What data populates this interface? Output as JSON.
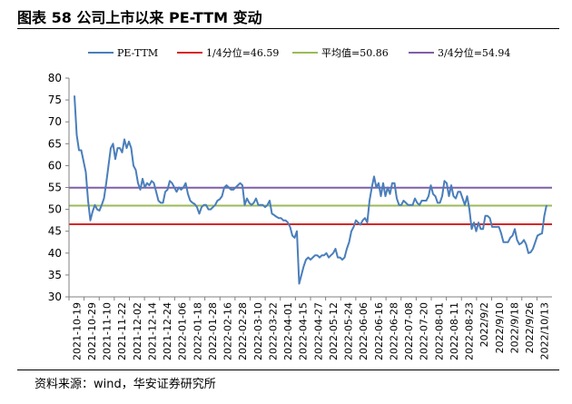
{
  "header": {
    "title": "图表 58 公司上市以来 PE-TTM 变动"
  },
  "footer": {
    "source": "资料来源：wind，华安证券研究所"
  },
  "chart_data": {
    "type": "line",
    "title": "",
    "xlabel": "",
    "ylabel": "",
    "ylim": [
      30,
      80
    ],
    "yticks": [
      30,
      35,
      40,
      45,
      50,
      55,
      60,
      65,
      70,
      75,
      80
    ],
    "grid": false,
    "legend_position": "top",
    "x_tick_labels": [
      "2021-10-19",
      "2021-10-29",
      "2021-11-10",
      "2021-11-22",
      "2021-12-02",
      "2021-12-14",
      "2021-12-24",
      "2022-01-06",
      "2022-01-18",
      "2022-01-28",
      "2022-02-16",
      "2022-02-28",
      "2022-03-10",
      "2022-03-22",
      "2022-04-01",
      "2022-04-15",
      "2022-04-27",
      "2022-05-12",
      "2022-05-24",
      "2022-06-06",
      "2022-06-16",
      "2022-06-28",
      "2022-07-08",
      "2022-07-20",
      "2022-08-01",
      "2022-08-11",
      "2022-08-23",
      "2022/9/2",
      "2022/9/10",
      "2022/9/18",
      "2022/9/26",
      "2022/10/13"
    ],
    "series": [
      {
        "name": "PE-TTM",
        "color": "#4a7ebb",
        "values": [
          76,
          67,
          63.5,
          63.5,
          61,
          58.5,
          52,
          47.5,
          49.5,
          51,
          50,
          49.7,
          51,
          52.5,
          56,
          60,
          64,
          65,
          61.5,
          64,
          64,
          63,
          66,
          64,
          65.5,
          64,
          60,
          59,
          56,
          54.5,
          57,
          55,
          56,
          55.5,
          56.5,
          56,
          54,
          52,
          51.5,
          51.5,
          54,
          54.5,
          56.5,
          56,
          55,
          54,
          55,
          54.5,
          55,
          56,
          53.5,
          52,
          51.5,
          51.2,
          50.5,
          49,
          50.5,
          51,
          51,
          50,
          50,
          50.5,
          51,
          52,
          52.3,
          53,
          55,
          55.5,
          55,
          54.5,
          54.5,
          55,
          55.5,
          56,
          55.5,
          51,
          52.5,
          51.5,
          51,
          51.5,
          52.5,
          51,
          51,
          51,
          50.5,
          51,
          52,
          49,
          48.7,
          48.3,
          48,
          48,
          47.5,
          47.5,
          47,
          46,
          44,
          43.5,
          45,
          33,
          35,
          37,
          38.5,
          39,
          38.5,
          39,
          39.5,
          39.5,
          39,
          39.5,
          39.5,
          40,
          39,
          39.5,
          40,
          41,
          39,
          39,
          38.5,
          39,
          41,
          42.5,
          45,
          46,
          47.5,
          47,
          46.5,
          47.5,
          48,
          47,
          52,
          55,
          57.5,
          55,
          56,
          53,
          56,
          53,
          55,
          53.5,
          56,
          56,
          52.5,
          51,
          51,
          52,
          51.5,
          51,
          51,
          51,
          52.5,
          51.5,
          51,
          52,
          52,
          52,
          53,
          55.5,
          53.5,
          53,
          51.5,
          51.5,
          53,
          56.5,
          56,
          53,
          55.5,
          53,
          52.5,
          54,
          54,
          52.5,
          51,
          53,
          50,
          45.5,
          47,
          45,
          47,
          45.5,
          45.5,
          48.5,
          48.5,
          48,
          46,
          46,
          46,
          46,
          44.5,
          42.5,
          42.5,
          42.5,
          43.5,
          44,
          45.5,
          43,
          42,
          42.3,
          43,
          42,
          40,
          40.2,
          41,
          42.5,
          44,
          44.3,
          44.5,
          48.5,
          51
        ]
      },
      {
        "name": "1/4分位=46.59",
        "color": "#d62728",
        "values": [
          46.59
        ]
      },
      {
        "name": "平均值=50.86",
        "color": "#9bbb59",
        "values": [
          50.86
        ]
      },
      {
        "name": "3/4分位=54.94",
        "color": "#7f5fa8",
        "values": [
          54.94
        ]
      }
    ]
  }
}
